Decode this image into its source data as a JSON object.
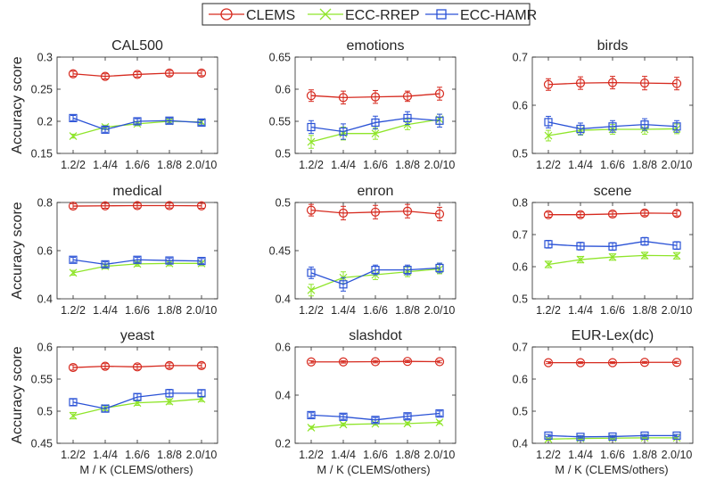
{
  "figure": {
    "legend": [
      {
        "label": "CLEMS",
        "color": "#d62a1f",
        "marker": "circle"
      },
      {
        "label": "ECC-RREP",
        "color": "#8fe52a",
        "marker": "x"
      },
      {
        "label": "ECC-HAMR",
        "color": "#2a52d6",
        "marker": "square"
      }
    ],
    "shared_ylabel": "Accuracy score",
    "shared_xlabel": "M / K (CLEMS/others)"
  },
  "chart_data": [
    {
      "type": "line",
      "title": "CAL500",
      "categories": [
        "1.2/2",
        "1.4/4",
        "1.6/6",
        "1.8/8",
        "2.0/10"
      ],
      "ylim": [
        0.15,
        0.3
      ],
      "yticks": [
        "0.15",
        "0.2",
        "0.25",
        "0.3"
      ],
      "ytick_values": [
        0.15,
        0.2,
        0.25,
        0.3
      ],
      "grid": false,
      "series": [
        {
          "name": "CLEMS",
          "values": [
            0.274,
            0.27,
            0.273,
            0.275,
            0.275
          ],
          "errors": [
            0.004,
            0.004,
            0.004,
            0.004,
            0.004
          ]
        },
        {
          "name": "ECC-RREP",
          "values": [
            0.177,
            0.191,
            0.196,
            0.2,
            0.199
          ],
          "errors": [
            0.003,
            0.003,
            0.003,
            0.003,
            0.003
          ]
        },
        {
          "name": "ECC-HAMR",
          "values": [
            0.205,
            0.187,
            0.2,
            0.201,
            0.198
          ],
          "errors": [
            0.004,
            0.004,
            0.004,
            0.004,
            0.004
          ]
        }
      ]
    },
    {
      "type": "line",
      "title": "emotions",
      "categories": [
        "1.2/2",
        "1.4/4",
        "1.6/6",
        "1.8/8",
        "2.0/10"
      ],
      "ylim": [
        0.5,
        0.65
      ],
      "yticks": [
        "0.5",
        "0.55",
        "0.6",
        "0.65"
      ],
      "ytick_values": [
        0.5,
        0.55,
        0.6,
        0.65
      ],
      "grid": false,
      "series": [
        {
          "name": "CLEMS",
          "values": [
            0.59,
            0.587,
            0.588,
            0.589,
            0.593
          ],
          "errors": [
            0.009,
            0.01,
            0.01,
            0.008,
            0.01
          ]
        },
        {
          "name": "ECC-RREP",
          "values": [
            0.518,
            0.531,
            0.531,
            0.545,
            0.553
          ],
          "errors": [
            0.01,
            0.01,
            0.009,
            0.008,
            0.008
          ]
        },
        {
          "name": "ECC-HAMR",
          "values": [
            0.541,
            0.534,
            0.548,
            0.555,
            0.551
          ],
          "errors": [
            0.01,
            0.012,
            0.01,
            0.01,
            0.01
          ]
        }
      ]
    },
    {
      "type": "line",
      "title": "birds",
      "categories": [
        "1.2/2",
        "1.4/4",
        "1.6/6",
        "1.8/8",
        "2.0/10"
      ],
      "ylim": [
        0.5,
        0.7
      ],
      "yticks": [
        "0.5",
        "0.6",
        "0.7"
      ],
      "ytick_values": [
        0.5,
        0.6,
        0.7
      ],
      "grid": false,
      "series": [
        {
          "name": "CLEMS",
          "values": [
            0.643,
            0.646,
            0.647,
            0.646,
            0.645
          ],
          "errors": [
            0.012,
            0.013,
            0.013,
            0.014,
            0.013
          ]
        },
        {
          "name": "ECC-RREP",
          "values": [
            0.537,
            0.548,
            0.55,
            0.55,
            0.551
          ],
          "errors": [
            0.011,
            0.01,
            0.01,
            0.01,
            0.01
          ]
        },
        {
          "name": "ECC-HAMR",
          "values": [
            0.565,
            0.551,
            0.556,
            0.56,
            0.556
          ],
          "errors": [
            0.012,
            0.012,
            0.012,
            0.012,
            0.012
          ]
        }
      ]
    },
    {
      "type": "line",
      "title": "medical",
      "categories": [
        "1.2/2",
        "1.4/4",
        "1.6/6",
        "1.8/8",
        "2.0/10"
      ],
      "ylim": [
        0.4,
        0.8
      ],
      "yticks": [
        "0.4",
        "0.6",
        "0.8"
      ],
      "ytick_values": [
        0.4,
        0.6,
        0.8
      ],
      "grid": false,
      "series": [
        {
          "name": "CLEMS",
          "values": [
            0.785,
            0.786,
            0.787,
            0.787,
            0.786
          ],
          "errors": [
            0.01,
            0.01,
            0.01,
            0.01,
            0.01
          ]
        },
        {
          "name": "ECC-RREP",
          "values": [
            0.508,
            0.535,
            0.545,
            0.547,
            0.547
          ],
          "errors": [
            0.01,
            0.01,
            0.01,
            0.01,
            0.01
          ]
        },
        {
          "name": "ECC-HAMR",
          "values": [
            0.562,
            0.543,
            0.562,
            0.559,
            0.557
          ],
          "errors": [
            0.01,
            0.01,
            0.01,
            0.01,
            0.01
          ]
        }
      ]
    },
    {
      "type": "line",
      "title": "enron",
      "categories": [
        "1.2/2",
        "1.4/4",
        "1.6/6",
        "1.8/8",
        "2.0/10"
      ],
      "ylim": [
        0.4,
        0.5
      ],
      "yticks": [
        "0.4",
        "0.45",
        "0.5"
      ],
      "ytick_values": [
        0.4,
        0.45,
        0.5
      ],
      "grid": false,
      "series": [
        {
          "name": "CLEMS",
          "values": [
            0.492,
            0.489,
            0.49,
            0.491,
            0.488
          ],
          "errors": [
            0.006,
            0.007,
            0.007,
            0.007,
            0.007
          ]
        },
        {
          "name": "ECC-RREP",
          "values": [
            0.409,
            0.422,
            0.425,
            0.428,
            0.431
          ],
          "errors": [
            0.006,
            0.006,
            0.005,
            0.005,
            0.005
          ]
        },
        {
          "name": "ECC-HAMR",
          "values": [
            0.427,
            0.415,
            0.43,
            0.43,
            0.432
          ],
          "errors": [
            0.006,
            0.007,
            0.005,
            0.005,
            0.005
          ]
        }
      ]
    },
    {
      "type": "line",
      "title": "scene",
      "categories": [
        "1.2/2",
        "1.4/4",
        "1.6/6",
        "1.8/8",
        "2.0/10"
      ],
      "ylim": [
        0.5,
        0.8
      ],
      "yticks": [
        "0.5",
        "0.6",
        "0.7",
        "0.8"
      ],
      "ytick_values": [
        0.5,
        0.6,
        0.7,
        0.8
      ],
      "grid": false,
      "series": [
        {
          "name": "CLEMS",
          "values": [
            0.762,
            0.762,
            0.764,
            0.767,
            0.766
          ],
          "errors": [
            0.008,
            0.008,
            0.008,
            0.008,
            0.008
          ]
        },
        {
          "name": "ECC-RREP",
          "values": [
            0.607,
            0.622,
            0.63,
            0.635,
            0.634
          ],
          "errors": [
            0.01,
            0.01,
            0.01,
            0.01,
            0.01
          ]
        },
        {
          "name": "ECC-HAMR",
          "values": [
            0.67,
            0.664,
            0.663,
            0.679,
            0.666
          ],
          "errors": [
            0.012,
            0.012,
            0.012,
            0.012,
            0.012
          ]
        }
      ]
    },
    {
      "type": "line",
      "title": "yeast",
      "categories": [
        "1.2/2",
        "1.4/4",
        "1.6/6",
        "1.8/8",
        "2.0/10"
      ],
      "ylim": [
        0.45,
        0.6
      ],
      "yticks": [
        "0.45",
        "0.5",
        "0.55",
        "0.6"
      ],
      "ytick_values": [
        0.45,
        0.5,
        0.55,
        0.6
      ],
      "grid": false,
      "series": [
        {
          "name": "CLEMS",
          "values": [
            0.568,
            0.57,
            0.569,
            0.571,
            0.571
          ],
          "errors": [
            0.004,
            0.004,
            0.004,
            0.004,
            0.004
          ]
        },
        {
          "name": "ECC-RREP",
          "values": [
            0.493,
            0.505,
            0.513,
            0.515,
            0.519
          ],
          "errors": [
            0.005,
            0.004,
            0.004,
            0.004,
            0.004
          ]
        },
        {
          "name": "ECC-HAMR",
          "values": [
            0.514,
            0.504,
            0.522,
            0.528,
            0.528
          ],
          "errors": [
            0.005,
            0.005,
            0.005,
            0.006,
            0.005
          ]
        }
      ]
    },
    {
      "type": "line",
      "title": "slashdot",
      "categories": [
        "1.2/2",
        "1.4/4",
        "1.6/6",
        "1.8/8",
        "2.0/10"
      ],
      "ylim": [
        0.2,
        0.6
      ],
      "yticks": [
        "0.2",
        "0.4",
        "0.6"
      ],
      "ytick_values": [
        0.2,
        0.4,
        0.6
      ],
      "grid": false,
      "series": [
        {
          "name": "CLEMS",
          "values": [
            0.538,
            0.538,
            0.539,
            0.54,
            0.539
          ],
          "errors": [
            0.005,
            0.005,
            0.005,
            0.005,
            0.005
          ]
        },
        {
          "name": "ECC-RREP",
          "values": [
            0.265,
            0.278,
            0.281,
            0.282,
            0.287
          ],
          "errors": [
            0.006,
            0.006,
            0.006,
            0.006,
            0.006
          ]
        },
        {
          "name": "ECC-HAMR",
          "values": [
            0.317,
            0.31,
            0.297,
            0.312,
            0.324
          ],
          "errors": [
            0.01,
            0.01,
            0.01,
            0.01,
            0.01
          ]
        }
      ]
    },
    {
      "type": "line",
      "title": "EUR-Lex(dc)",
      "categories": [
        "1.2/2",
        "1.4/4",
        "1.6/6",
        "1.8/8",
        "2.0/10"
      ],
      "ylim": [
        0.4,
        0.7
      ],
      "yticks": [
        "0.4",
        "0.5",
        "0.6",
        "0.7"
      ],
      "ytick_values": [
        0.4,
        0.5,
        0.6,
        0.7
      ],
      "grid": false,
      "series": [
        {
          "name": "CLEMS",
          "values": [
            0.651,
            0.651,
            0.651,
            0.652,
            0.652
          ],
          "errors": [
            0.003,
            0.003,
            0.003,
            0.003,
            0.003
          ]
        },
        {
          "name": "ECC-RREP",
          "values": [
            0.413,
            0.415,
            0.416,
            0.417,
            0.417
          ],
          "errors": [
            0.003,
            0.003,
            0.003,
            0.003,
            0.003
          ]
        },
        {
          "name": "ECC-HAMR",
          "values": [
            0.424,
            0.42,
            0.421,
            0.424,
            0.424
          ],
          "errors": [
            0.004,
            0.004,
            0.004,
            0.004,
            0.004
          ]
        }
      ]
    }
  ]
}
